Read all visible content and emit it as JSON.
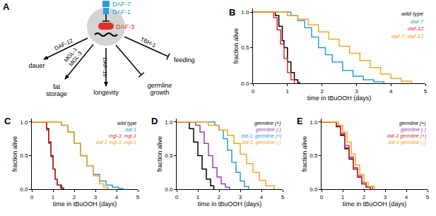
{
  "diagram": {
    "title": "A",
    "ligand": "DAF-7",
    "receptor": "DAF-1",
    "repressor": "DAF-3",
    "outputs": [
      {
        "label": [
          "dauer"
        ],
        "mediators": [
          "DAF-12"
        ],
        "arrow": "activate"
      },
      {
        "label": [
          "fat",
          "storage"
        ],
        "mediators": [
          "MGL-1",
          "MGL-3"
        ],
        "arrow": "activate"
      },
      {
        "label": [
          "longevity"
        ],
        "mediators": [
          "DAF-16"
        ],
        "arrow": "activate"
      },
      {
        "label": [
          "germline",
          "growth"
        ],
        "mediators": [],
        "arrow": "inhibit"
      },
      {
        "label": [
          "feeding"
        ],
        "mediators": [
          "TBH-1"
        ],
        "arrow": "inhibit"
      }
    ]
  },
  "chart_data": [
    {
      "type": "line",
      "title": "B",
      "line_style": "step",
      "legend": "upper right",
      "grid": false,
      "x_label": "time in tBuOOH (days)",
      "y_label": "fraction alive",
      "xlim": [
        0,
        5
      ],
      "xticks": [
        0,
        1,
        2,
        3,
        4,
        5
      ],
      "ylim": [
        0,
        1.05
      ],
      "yticks": [
        {
          "value": 0,
          "label": "0.0"
        },
        {
          "value": 0.5,
          "label": "0.5"
        },
        {
          "value": 1,
          "label": "1.0"
        }
      ],
      "series": [
        {
          "name": "wild type",
          "color": "#000000",
          "x": [
            0,
            0.55,
            0.65,
            0.75,
            0.85,
            0.9,
            1.0,
            1.1,
            1.2,
            1.3,
            1.35
          ],
          "values": [
            1,
            1,
            0.95,
            0.8,
            0.6,
            0.5,
            0.3,
            0.15,
            0.05,
            0.01,
            0
          ]
        },
        {
          "name": "daf-7",
          "color": "#2a9fd6",
          "x": [
            0,
            0.9,
            1.1,
            1.3,
            1.5,
            1.7,
            1.9,
            2.1,
            2.3,
            2.6,
            2.9,
            3.2,
            3.5,
            3.8
          ],
          "values": [
            1,
            1,
            0.95,
            0.88,
            0.78,
            0.65,
            0.5,
            0.4,
            0.3,
            0.18,
            0.1,
            0.05,
            0.02,
            0
          ]
        },
        {
          "name": "daf-12",
          "color": "#e0302a",
          "x": [
            0,
            0.5,
            0.6,
            0.7,
            0.8,
            0.9,
            1.0,
            1.1,
            1.2
          ],
          "values": [
            1,
            1,
            0.92,
            0.75,
            0.55,
            0.35,
            0.15,
            0.05,
            0
          ]
        },
        {
          "name": "daf-7; daf-12",
          "color": "#f5a623",
          "x": [
            0,
            0.7,
            1.0,
            1.3,
            1.6,
            1.9,
            2.2,
            2.5,
            2.8,
            3.1,
            3.4,
            3.7,
            4.0,
            4.3,
            4.6
          ],
          "values": [
            1,
            1,
            0.95,
            0.9,
            0.82,
            0.72,
            0.62,
            0.52,
            0.42,
            0.32,
            0.22,
            0.13,
            0.07,
            0.03,
            0
          ]
        }
      ]
    },
    {
      "type": "line",
      "title": "C",
      "line_style": "step",
      "legend": "upper right",
      "grid": false,
      "x_label": "time in tBuOOH (days)",
      "y_label": "fraction alive",
      "xlim": [
        0,
        5
      ],
      "xticks": [
        0,
        1,
        2,
        3,
        4,
        5
      ],
      "ylim": [
        0,
        1.05
      ],
      "yticks": [
        {
          "value": 0,
          "label": "0.0"
        },
        {
          "value": 0.5,
          "label": "0.5"
        },
        {
          "value": 1,
          "label": "1.0"
        }
      ],
      "series": [
        {
          "name": "wild type",
          "color": "#000000",
          "x": [
            0,
            0.6,
            0.7,
            0.8,
            0.9,
            1.0,
            1.1,
            1.2,
            1.4,
            1.5
          ],
          "values": [
            1,
            1,
            0.9,
            0.7,
            0.5,
            0.3,
            0.15,
            0.06,
            0.01,
            0
          ]
        },
        {
          "name": "daf-1",
          "color": "#2a9fd6",
          "x": [
            0,
            1.1,
            1.4,
            1.7,
            2.0,
            2.3,
            2.6,
            2.9,
            3.2,
            3.5,
            3.8,
            4.1,
            4.3
          ],
          "values": [
            1,
            1,
            0.95,
            0.85,
            0.68,
            0.5,
            0.35,
            0.22,
            0.12,
            0.06,
            0.03,
            0.01,
            0
          ]
        },
        {
          "name": "mgl-3; mgl-1",
          "color": "#e0302a",
          "x": [
            0,
            0.6,
            0.7,
            0.8,
            0.9,
            1.0,
            1.1,
            1.2,
            1.35,
            1.5
          ],
          "values": [
            1,
            1,
            0.88,
            0.68,
            0.48,
            0.3,
            0.15,
            0.06,
            0.02,
            0
          ]
        },
        {
          "name": "daf-1 mgl-3; mgl-1",
          "color": "#f5a623",
          "x": [
            0,
            1.1,
            1.4,
            1.7,
            2.0,
            2.3,
            2.6,
            2.9,
            3.2,
            3.4,
            3.6
          ],
          "values": [
            1,
            1,
            0.95,
            0.85,
            0.68,
            0.5,
            0.35,
            0.2,
            0.08,
            0.03,
            0
          ]
        }
      ]
    },
    {
      "type": "line",
      "title": "D",
      "line_style": "step",
      "legend": "upper right",
      "grid": false,
      "x_label": "time in tBuOOH (days)",
      "y_label": "fraction alive",
      "xlim": [
        0,
        5
      ],
      "xticks": [
        0,
        1,
        2,
        3,
        4,
        5
      ],
      "ylim": [
        0,
        1.05
      ],
      "yticks": [
        {
          "value": 0,
          "label": "0.0"
        },
        {
          "value": 0.5,
          "label": "0.5"
        },
        {
          "value": 1,
          "label": "1.0"
        }
      ],
      "series": [
        {
          "name": "germline (+)",
          "color": "#000000",
          "x": [
            0,
            0.4,
            0.6,
            0.8,
            1.0,
            1.2,
            1.4,
            1.6,
            1.75
          ],
          "values": [
            1,
            1,
            0.9,
            0.7,
            0.5,
            0.3,
            0.15,
            0.05,
            0
          ]
        },
        {
          "name": "germline (-)",
          "color": "#9b3fae",
          "x": [
            0,
            0.7,
            0.9,
            1.1,
            1.3,
            1.5,
            1.7,
            1.9,
            2.1,
            2.3,
            2.5
          ],
          "values": [
            1,
            1,
            0.95,
            0.85,
            0.68,
            0.5,
            0.32,
            0.18,
            0.08,
            0.03,
            0
          ]
        },
        {
          "name": "daf-1; germline (+)",
          "color": "#2a9fd6",
          "x": [
            0,
            1.5,
            1.8,
            2.0,
            2.2,
            2.4,
            2.6,
            2.8,
            3.0,
            3.2,
            3.4
          ],
          "values": [
            1,
            1,
            0.95,
            0.88,
            0.75,
            0.58,
            0.4,
            0.25,
            0.12,
            0.04,
            0
          ]
        },
        {
          "name": "daf-1; germline (-)",
          "color": "#f5a623",
          "x": [
            0,
            1.0,
            1.5,
            2.0,
            2.4,
            2.7,
            3.0,
            3.3,
            3.6,
            3.9,
            4.2,
            4.6
          ],
          "values": [
            1,
            1,
            0.95,
            0.88,
            0.8,
            0.68,
            0.52,
            0.38,
            0.25,
            0.13,
            0.05,
            0
          ]
        }
      ]
    },
    {
      "type": "line",
      "title": "E",
      "line_style": "step",
      "legend": "upper right",
      "grid": false,
      "x_label": "time in tBuOOH (days)",
      "y_label": "fraction alive",
      "xlim": [
        0,
        5
      ],
      "xticks": [
        0,
        1,
        2,
        3,
        4,
        5
      ],
      "ylim": [
        0,
        1.05
      ],
      "yticks": [
        {
          "value": 0,
          "label": "0.0"
        },
        {
          "value": 0.5,
          "label": "0.5"
        },
        {
          "value": 1,
          "label": "1.0"
        }
      ],
      "series": [
        {
          "name": "germline (+)",
          "color": "#000000",
          "x": [
            0,
            0.5,
            0.7,
            0.9,
            1.1,
            1.3,
            1.5,
            1.7,
            1.9,
            2.1,
            2.3
          ],
          "values": [
            1,
            1,
            0.93,
            0.8,
            0.6,
            0.45,
            0.3,
            0.18,
            0.08,
            0.03,
            0
          ]
        },
        {
          "name": "germline (-)",
          "color": "#9b3fae",
          "x": [
            0,
            0.5,
            0.7,
            0.9,
            1.1,
            1.3,
            1.5,
            1.7,
            1.9,
            2.1,
            2.4
          ],
          "values": [
            1,
            1,
            0.95,
            0.83,
            0.65,
            0.48,
            0.32,
            0.2,
            0.1,
            0.04,
            0
          ]
        },
        {
          "name": "daf-3 germline (+)",
          "color": "#e0302a",
          "x": [
            0,
            0.5,
            0.7,
            0.9,
            1.1,
            1.3,
            1.5,
            1.7,
            1.9,
            2.1,
            2.3
          ],
          "values": [
            1,
            1,
            0.94,
            0.82,
            0.62,
            0.46,
            0.3,
            0.18,
            0.08,
            0.03,
            0
          ]
        },
        {
          "name": "daf-3 germline (-)",
          "color": "#f5a623",
          "x": [
            0,
            0.6,
            0.8,
            1.0,
            1.2,
            1.4,
            1.6,
            1.8,
            2.0,
            2.2,
            2.5
          ],
          "values": [
            1,
            1,
            0.95,
            0.85,
            0.7,
            0.52,
            0.36,
            0.22,
            0.1,
            0.04,
            0
          ]
        }
      ]
    }
  ]
}
